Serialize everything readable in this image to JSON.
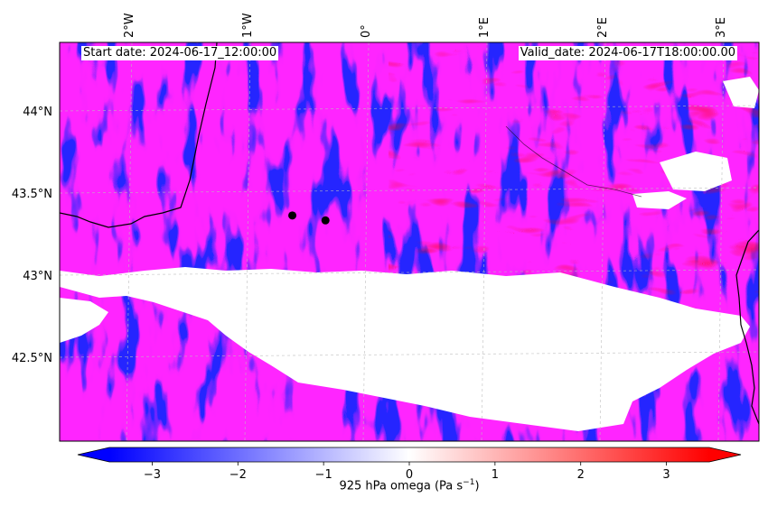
{
  "header": {
    "start_date": "Start date: 2024-06-17_12:00:00",
    "valid_date": "Valid_date: 2024-06-17T18:00:00.00"
  },
  "map": {
    "variable": "925 hPa omega",
    "lon_labels": [
      "2°W",
      "1°W",
      "0°",
      "1°E",
      "2°E",
      "3°E"
    ],
    "lat_labels": [
      "44°N",
      "43.5°N",
      "43°N",
      "42.5°N"
    ],
    "gridlines": true,
    "colormap": "bwr",
    "markers": [
      {
        "lon": -0.66,
        "lat": 43.38
      },
      {
        "lon": -0.38,
        "lat": 43.35
      }
    ]
  },
  "colorbar": {
    "ticks": [
      "−3",
      "−2",
      "−1",
      "0",
      "1",
      "2",
      "3"
    ],
    "range": [
      -3.5,
      3.5
    ],
    "extend": "both",
    "label_prefix": "925 hPa omega (Pa s",
    "label_exp": "−1",
    "label_suffix": ")",
    "colors": {
      "low": "#0000ff",
      "mid": "#ffffff",
      "high": "#ff0000"
    }
  }
}
